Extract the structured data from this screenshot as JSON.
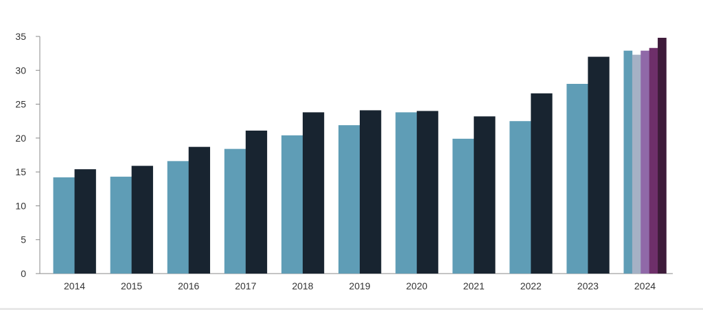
{
  "chart_data": {
    "type": "bar",
    "categories": [
      "2014",
      "2015",
      "2016",
      "2017",
      "2018",
      "2019",
      "2020",
      "2021",
      "2022",
      "2023",
      "2024"
    ],
    "series": [
      {
        "color": "#5f9db6",
        "values": [
          14.2,
          14.3,
          16.6,
          18.4,
          20.4,
          21.9,
          23.8,
          19.9,
          22.5,
          28.0,
          32.9
        ]
      },
      {
        "color": "#182430",
        "values": [
          15.4,
          15.9,
          18.7,
          21.1,
          23.8,
          24.1,
          24.0,
          23.2,
          26.6,
          32.0,
          null
        ]
      }
    ],
    "segments_2024": [
      {
        "color": "#5f9db6",
        "value": 32.9
      },
      {
        "color": "#a5b1c5",
        "value": 32.3
      },
      {
        "color": "#9069a8",
        "value": 32.9
      },
      {
        "color": "#6e2f6a",
        "value": 33.3
      },
      {
        "color": "#3e1b3a",
        "value": 34.8
      }
    ],
    "ylim": [
      0,
      35
    ],
    "yticks": [
      "0",
      "5",
      "10",
      "15",
      "20",
      "25",
      "30",
      "35"
    ],
    "title": "",
    "xlabel": "",
    "ylabel": "",
    "grid": false,
    "axis_color": "#888888"
  }
}
